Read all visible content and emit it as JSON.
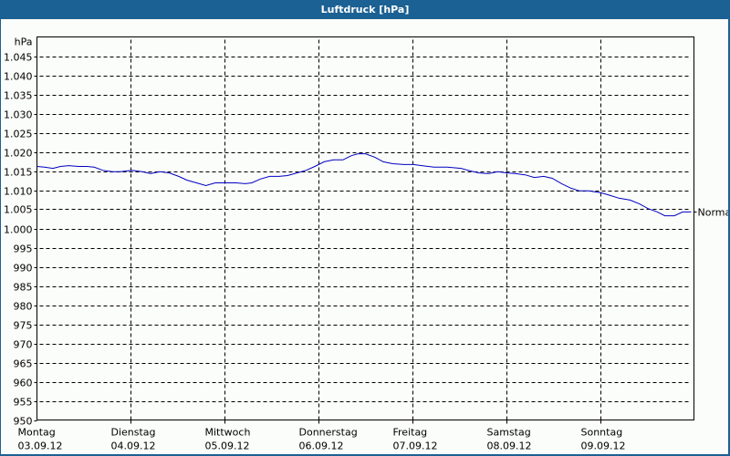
{
  "window": {
    "title": "Luftdruck [hPa]"
  },
  "colors": {
    "titlebar": "#1c6193",
    "background": "#fbfdfa",
    "line": "#0000c0",
    "grid": "#000000"
  },
  "chart_data": {
    "type": "line",
    "title": "Luftdruck [hPa]",
    "xlabel": "",
    "ylabel": "hPa",
    "ylim": [
      950,
      1050
    ],
    "yticks": [
      950,
      955,
      960,
      965,
      970,
      975,
      980,
      985,
      990,
      995,
      1000,
      1005,
      1010,
      1015,
      1020,
      1025,
      1030,
      1035,
      1040,
      1045
    ],
    "ytick_labels": [
      "950",
      "955",
      "960",
      "965",
      "970",
      "975",
      "980",
      "985",
      "990",
      "995",
      "1.000",
      "1.005",
      "1.010",
      "1.015",
      "1.020",
      "1.025",
      "1.030",
      "1.035",
      "1.040",
      "1.045"
    ],
    "xlim": [
      0,
      7
    ],
    "xticks": [
      {
        "day": "Montag",
        "date": "03.09.12"
      },
      {
        "day": "Dienstag",
        "date": "04.09.12"
      },
      {
        "day": "Mittwoch",
        "date": "05.09.12"
      },
      {
        "day": "Donnerstag",
        "date": "06.09.12"
      },
      {
        "day": "Freitag",
        "date": "07.09.12"
      },
      {
        "day": "Samstag",
        "date": "08.09.12"
      },
      {
        "day": "Sonntag",
        "date": "09.09.12"
      }
    ],
    "grid": true,
    "reference_line": {
      "label": "Normal",
      "value": 1004.3
    },
    "series": [
      {
        "name": "Luftdruck",
        "x": [
          0.0,
          0.08,
          0.17,
          0.25,
          0.34,
          0.44,
          0.53,
          0.61,
          0.7,
          0.8,
          0.89,
          1.01,
          1.12,
          1.21,
          1.31,
          1.41,
          1.51,
          1.6,
          1.7,
          1.8,
          1.9,
          2.0,
          2.12,
          2.22,
          2.29,
          2.38,
          2.48,
          2.58,
          2.67,
          2.77,
          2.87,
          2.96,
          3.06,
          3.16,
          3.26,
          3.35,
          3.42,
          3.5,
          3.6,
          3.69,
          3.79,
          3.91,
          4.01,
          4.1,
          4.23,
          4.37,
          4.52,
          4.62,
          4.71,
          4.81,
          4.91,
          5.01,
          5.1,
          5.2,
          5.3,
          5.4,
          5.49,
          5.59,
          5.69,
          5.78,
          5.88,
          6.01,
          6.11,
          6.2,
          6.32,
          6.42,
          6.51,
          6.61,
          6.69,
          6.79,
          6.88,
          6.97
        ],
        "values": [
          1016.2,
          1016.0,
          1015.7,
          1016.2,
          1016.4,
          1016.2,
          1016.2,
          1016.0,
          1015.2,
          1014.8,
          1014.8,
          1015.2,
          1014.8,
          1014.3,
          1014.8,
          1014.5,
          1013.6,
          1012.6,
          1011.9,
          1011.2,
          1011.9,
          1011.9,
          1011.9,
          1011.7,
          1011.9,
          1012.9,
          1013.6,
          1013.6,
          1013.8,
          1014.5,
          1015.2,
          1016.2,
          1017.4,
          1017.9,
          1017.9,
          1019.0,
          1019.5,
          1019.5,
          1018.6,
          1017.4,
          1016.9,
          1016.7,
          1016.7,
          1016.4,
          1016.0,
          1016.0,
          1015.7,
          1015.0,
          1014.5,
          1014.3,
          1014.8,
          1014.5,
          1014.3,
          1014.0,
          1013.3,
          1013.6,
          1013.1,
          1011.7,
          1010.5,
          1009.8,
          1009.8,
          1009.3,
          1008.6,
          1007.9,
          1007.4,
          1006.4,
          1005.2,
          1004.3,
          1003.3,
          1003.3,
          1004.3,
          1004.3
        ]
      }
    ]
  }
}
